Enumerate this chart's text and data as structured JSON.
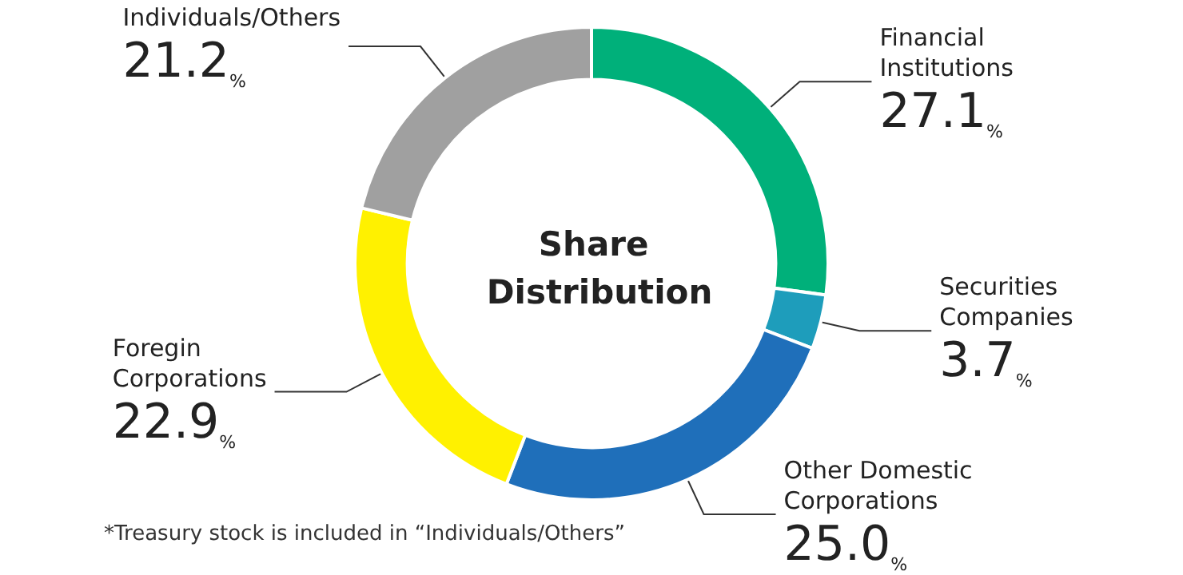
{
  "chart_data": {
    "type": "donut",
    "title": "Share Distribution",
    "categories": [
      "Financial Institutions",
      "Securities Companies",
      "Other Domestic Corporations",
      "Foregin Corporations",
      "Individuals/Others"
    ],
    "values": [
      27.1,
      3.7,
      25.0,
      22.9,
      21.2
    ],
    "value_labels": [
      "27.1%",
      "3.7%",
      "25.0%",
      "22.9%",
      "21.2%"
    ],
    "colors": [
      "#00b07a",
      "#1e9dbb",
      "#1f6fba",
      "#fff100",
      "#a0a0a0"
    ],
    "legend": false,
    "annotations": [
      "*Treasury stock is included in “Individuals/Others”"
    ]
  }
}
